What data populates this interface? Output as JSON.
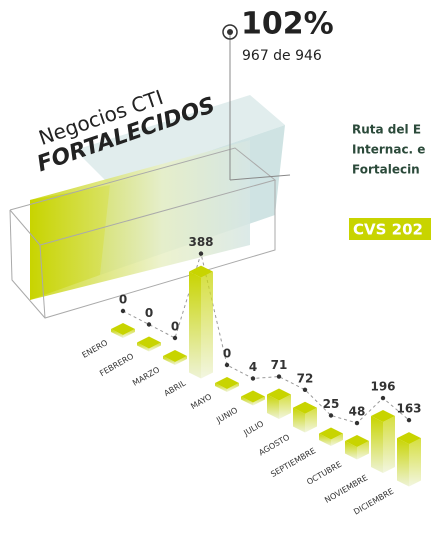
{
  "header": {
    "title_line1": "Negocios CTI",
    "title_line2": "FORTALECIDOS",
    "percent": "102%",
    "ratio": "967 de 946"
  },
  "side": {
    "line1": "Ruta del E",
    "line2": "Internac. e",
    "line3": "Fortalecin",
    "badge": "CVS 202"
  },
  "chart_data": {
    "type": "bar",
    "color": "#c8d400",
    "categories": [
      "ENERO",
      "FEBRERO",
      "MARZO",
      "ABRIL",
      "MAYO",
      "JUNIO",
      "JULIO",
      "AGOSTO",
      "SEPTIEMBRE",
      "OCTUBRE",
      "NOVIEMBRE",
      "DICIEMBRE"
    ],
    "values": [
      0,
      0,
      0,
      388,
      0,
      4,
      71,
      72,
      25,
      48,
      196,
      163
    ]
  }
}
